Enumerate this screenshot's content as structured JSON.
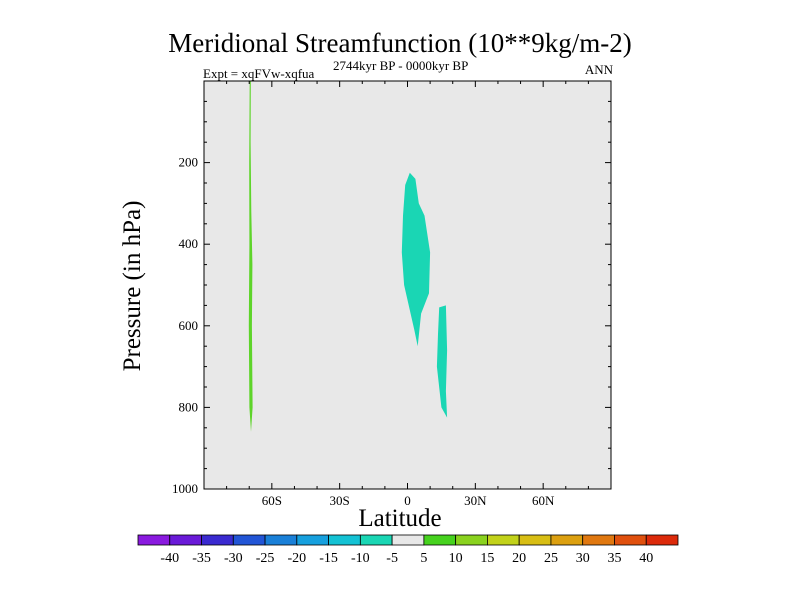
{
  "chart_data": {
    "type": "contour",
    "title": "Meridional Streamfunction (10**9kg/m-2)",
    "subtitle_left": "Expt = xqFVw-xqfua",
    "subtitle_center": "2744kyr BP - 0000kyr BP",
    "subtitle_right": "ANN",
    "xlabel": "Latitude",
    "ylabel": "Pressure (in hPa)",
    "xlim": [
      -90,
      90
    ],
    "ylim": [
      1000,
      0
    ],
    "x_ticks": [
      {
        "value": -60,
        "label": "60S"
      },
      {
        "value": -30,
        "label": "30S"
      },
      {
        "value": 0,
        "label": "0"
      },
      {
        "value": 30,
        "label": "30N"
      },
      {
        "value": 60,
        "label": "60N"
      }
    ],
    "y_ticks": [
      {
        "value": 200,
        "label": "200"
      },
      {
        "value": 400,
        "label": "400"
      },
      {
        "value": 600,
        "label": "600"
      },
      {
        "value": 800,
        "label": "800"
      },
      {
        "value": 1000,
        "label": "1000"
      }
    ],
    "background_color": "#e8e8e8",
    "colorbar": {
      "labels": [
        "-40",
        "-35",
        "-30",
        "-25",
        "-20",
        "-15",
        "-10",
        "-5",
        "5",
        "10",
        "15",
        "20",
        "25",
        "30",
        "35",
        "40"
      ],
      "colors": [
        "#8a1adf",
        "#6a1ad8",
        "#3a2ad0",
        "#2255d6",
        "#1a80d8",
        "#16a0de",
        "#14c2d4",
        "#1ad6b4",
        "#e8e8e8",
        "#46d21e",
        "#8ad21e",
        "#c2d21a",
        "#d8be14",
        "#dca010",
        "#e07810",
        "#e0500e",
        "#dc2a0a"
      ]
    },
    "regions": [
      {
        "name": "southern-high-latitude-positive",
        "value_range": "5 to 10",
        "color": "#5ed42a",
        "outline": [
          [
            -69.8,
            0
          ],
          [
            -69.3,
            0
          ],
          [
            -69.4,
            150
          ],
          [
            -69.1,
            320
          ],
          [
            -68.6,
            450
          ],
          [
            -68.8,
            600
          ],
          [
            -68.5,
            800
          ],
          [
            -69.2,
            860
          ],
          [
            -69.9,
            800
          ],
          [
            -70.2,
            600
          ],
          [
            -69.9,
            400
          ],
          [
            -70.0,
            200
          ]
        ]
      },
      {
        "name": "equatorial-upper-negative",
        "value_range": "-10 to -5",
        "color": "#1ad6b4",
        "outline": [
          [
            1.0,
            225
          ],
          [
            3.5,
            240
          ],
          [
            5.0,
            300
          ],
          [
            7.5,
            330
          ],
          [
            10.0,
            420
          ],
          [
            9.5,
            520
          ],
          [
            6.0,
            570
          ],
          [
            4.5,
            650
          ],
          [
            3.0,
            610
          ],
          [
            -1.5,
            500
          ],
          [
            -2.5,
            420
          ],
          [
            -2.0,
            330
          ],
          [
            -1.0,
            255
          ]
        ]
      },
      {
        "name": "northern-lower-negative",
        "value_range": "-10 to -5",
        "color": "#1ad6b4",
        "outline": [
          [
            14.0,
            555
          ],
          [
            17.0,
            550
          ],
          [
            17.5,
            660
          ],
          [
            17.0,
            760
          ],
          [
            17.5,
            825
          ],
          [
            15.0,
            800
          ],
          [
            13.0,
            700
          ],
          [
            13.5,
            620
          ]
        ]
      }
    ]
  }
}
